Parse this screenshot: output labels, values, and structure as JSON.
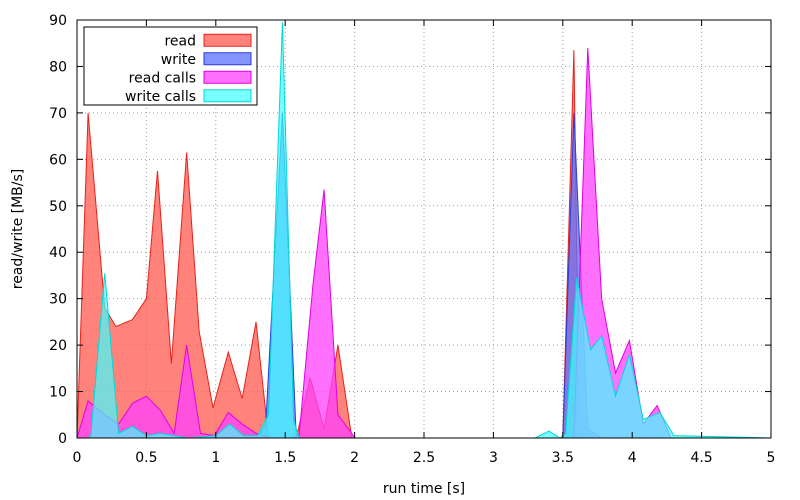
{
  "chart_data": {
    "type": "area",
    "xlabel": "run time [s]",
    "ylabel": "read/write [MB/s]",
    "xlim": [
      0,
      5
    ],
    "ylim": [
      0,
      90
    ],
    "xticks": [
      0,
      0.5,
      1,
      1.5,
      2,
      2.5,
      3,
      3.5,
      4,
      4.5,
      5
    ],
    "xtick_labels": [
      "0",
      "0.5",
      "1",
      "1.5",
      "2",
      "2.5",
      "3",
      "3.5",
      "4",
      "4.5",
      "5"
    ],
    "yticks": [
      0,
      10,
      20,
      30,
      40,
      50,
      60,
      70,
      80,
      90
    ],
    "ytick_labels": [
      "0",
      "10",
      "20",
      "30",
      "40",
      "50",
      "60",
      "70",
      "80",
      "90"
    ],
    "grid": true,
    "legend_position": "top-left",
    "series": [
      {
        "name": "read",
        "fill": "#ff5a4e",
        "stroke": "#e8221a",
        "opacity": 0.75,
        "points": [
          [
            0,
            0
          ],
          [
            0.08,
            70
          ],
          [
            0.2,
            28
          ],
          [
            0.28,
            24
          ],
          [
            0.4,
            25.5
          ],
          [
            0.5,
            30
          ],
          [
            0.58,
            57.5
          ],
          [
            0.68,
            16
          ],
          [
            0.79,
            61.5
          ],
          [
            0.88,
            23
          ],
          [
            0.98,
            6.5
          ],
          [
            1.09,
            18.5
          ],
          [
            1.19,
            8.5
          ],
          [
            1.29,
            25
          ],
          [
            1.38,
            0
          ],
          [
            1.58,
            0
          ],
          [
            1.68,
            13
          ],
          [
            1.78,
            2
          ],
          [
            1.88,
            20
          ],
          [
            1.98,
            0
          ],
          [
            2.0,
            0
          ],
          [
            3.5,
            0
          ],
          [
            3.58,
            83.5
          ],
          [
            3.62,
            0
          ],
          [
            5,
            0
          ]
        ]
      },
      {
        "name": "write",
        "fill": "#5a70ff",
        "stroke": "#2b3cd8",
        "opacity": 0.75,
        "points": [
          [
            0,
            0
          ],
          [
            0.1,
            0
          ],
          [
            1.3,
            0
          ],
          [
            1.36,
            3
          ],
          [
            1.48,
            70
          ],
          [
            1.58,
            0
          ],
          [
            3.5,
            0
          ],
          [
            3.58,
            70
          ],
          [
            3.68,
            2
          ],
          [
            3.78,
            0
          ],
          [
            5,
            0
          ]
        ]
      },
      {
        "name": "read calls",
        "fill": "#ff40ff",
        "stroke": "#e000e0",
        "opacity": 0.75,
        "points": [
          [
            0,
            0
          ],
          [
            0.08,
            8
          ],
          [
            0.2,
            5
          ],
          [
            0.3,
            3
          ],
          [
            0.4,
            7.5
          ],
          [
            0.5,
            9
          ],
          [
            0.6,
            6
          ],
          [
            0.7,
            1
          ],
          [
            0.79,
            20
          ],
          [
            0.89,
            1
          ],
          [
            0.99,
            0.5
          ],
          [
            1.09,
            5.5
          ],
          [
            1.19,
            3
          ],
          [
            1.29,
            1
          ],
          [
            1.4,
            0
          ],
          [
            1.55,
            0
          ],
          [
            1.6,
            0.5
          ],
          [
            1.7,
            33
          ],
          [
            1.78,
            53.5
          ],
          [
            1.88,
            5
          ],
          [
            1.98,
            1
          ],
          [
            2.0,
            0
          ],
          [
            3.5,
            0
          ],
          [
            3.58,
            0
          ],
          [
            3.68,
            84
          ],
          [
            3.78,
            30
          ],
          [
            3.88,
            14
          ],
          [
            3.98,
            21
          ],
          [
            4.08,
            3
          ],
          [
            4.18,
            7
          ],
          [
            4.28,
            0
          ],
          [
            5,
            0
          ]
        ]
      },
      {
        "name": "write calls",
        "fill": "#40ffff",
        "stroke": "#00d8d8",
        "opacity": 0.7,
        "points": [
          [
            0,
            0
          ],
          [
            0.08,
            0
          ],
          [
            0.1,
            0.5
          ],
          [
            0.2,
            35.5
          ],
          [
            0.3,
            1
          ],
          [
            0.4,
            2.5
          ],
          [
            0.5,
            0.5
          ],
          [
            0.6,
            1
          ],
          [
            0.7,
            0.5
          ],
          [
            0.8,
            0
          ],
          [
            1.0,
            0.5
          ],
          [
            1.1,
            3
          ],
          [
            1.2,
            0.5
          ],
          [
            1.3,
            0.5
          ],
          [
            1.38,
            5
          ],
          [
            1.48,
            89.5
          ],
          [
            1.56,
            4
          ],
          [
            1.6,
            0
          ],
          [
            2.0,
            0
          ],
          [
            3.3,
            0
          ],
          [
            3.4,
            1.5
          ],
          [
            3.48,
            0
          ],
          [
            3.52,
            1
          ],
          [
            3.6,
            34.5
          ],
          [
            3.7,
            19
          ],
          [
            3.78,
            22
          ],
          [
            3.88,
            9
          ],
          [
            3.98,
            18
          ],
          [
            4.08,
            4
          ],
          [
            4.2,
            5.5
          ],
          [
            4.3,
            0.5
          ],
          [
            5,
            0
          ]
        ]
      }
    ]
  }
}
